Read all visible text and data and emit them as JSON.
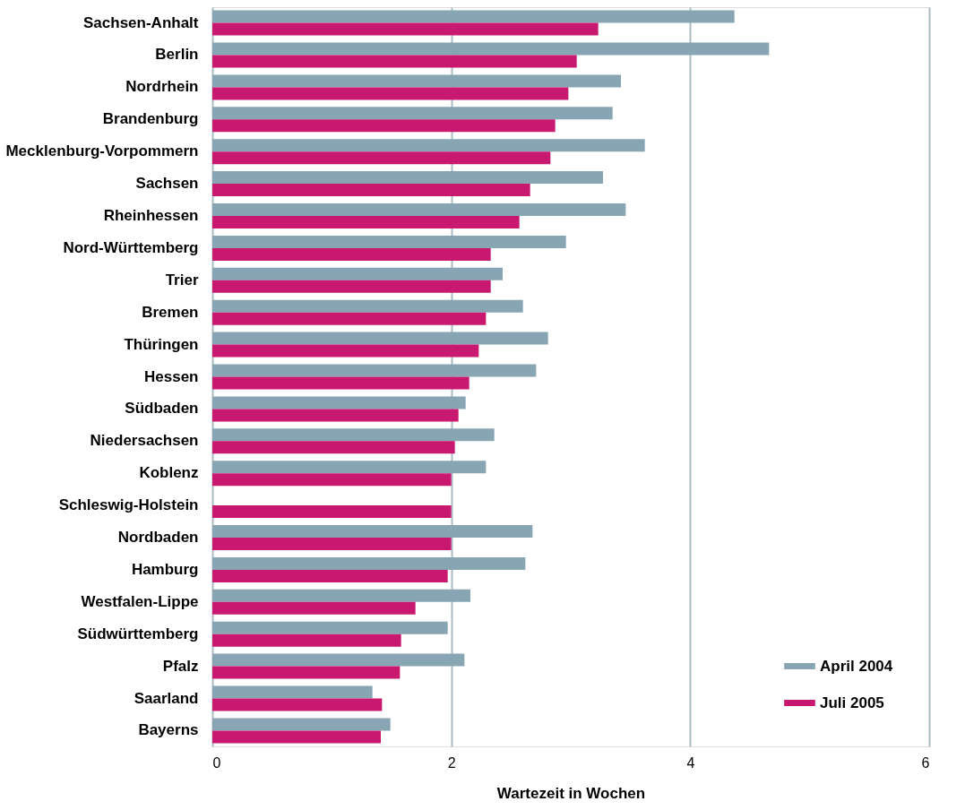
{
  "chart_data": {
    "type": "bar",
    "orientation": "horizontal",
    "xlabel": "Wartezeit in Wochen",
    "categories": [
      "Sachsen-Anhalt",
      "Berlin",
      "Nordrhein",
      "Brandenburg",
      "Mecklenburg-Vorpommern",
      "Sachsen",
      "Rheinhessen",
      "Nord-Württemberg",
      "Trier",
      "Bremen",
      "Thüringen",
      "Hessen",
      "Südbaden",
      "Niedersachsen",
      "Koblenz",
      "Schleswig-Holstein",
      "Nordbaden",
      "Hamburg",
      "Westfalen-Lippe",
      "Südwürttemberg",
      "Pfalz",
      "Saarland",
      "Bayerns"
    ],
    "series": [
      {
        "name": "April 2004",
        "color": "#87a5b3",
        "values": [
          4.37,
          4.66,
          3.42,
          3.35,
          3.62,
          3.27,
          3.46,
          2.96,
          2.43,
          2.6,
          2.81,
          2.71,
          2.12,
          2.36,
          2.29,
          null,
          2.68,
          2.62,
          2.16,
          1.97,
          2.11,
          1.34,
          1.49
        ]
      },
      {
        "name": "Juli 2005",
        "color": "#c8186f",
        "values": [
          3.23,
          3.05,
          2.98,
          2.87,
          2.83,
          2.66,
          2.57,
          2.33,
          2.33,
          2.29,
          2.23,
          2.15,
          2.06,
          2.03,
          2.0,
          2.0,
          2.0,
          1.97,
          1.7,
          1.58,
          1.57,
          1.42,
          1.41
        ]
      }
    ],
    "xlim": [
      0,
      6
    ],
    "xticks": [
      0,
      2,
      4,
      6
    ],
    "grid": "x",
    "legend": "bottom right"
  }
}
